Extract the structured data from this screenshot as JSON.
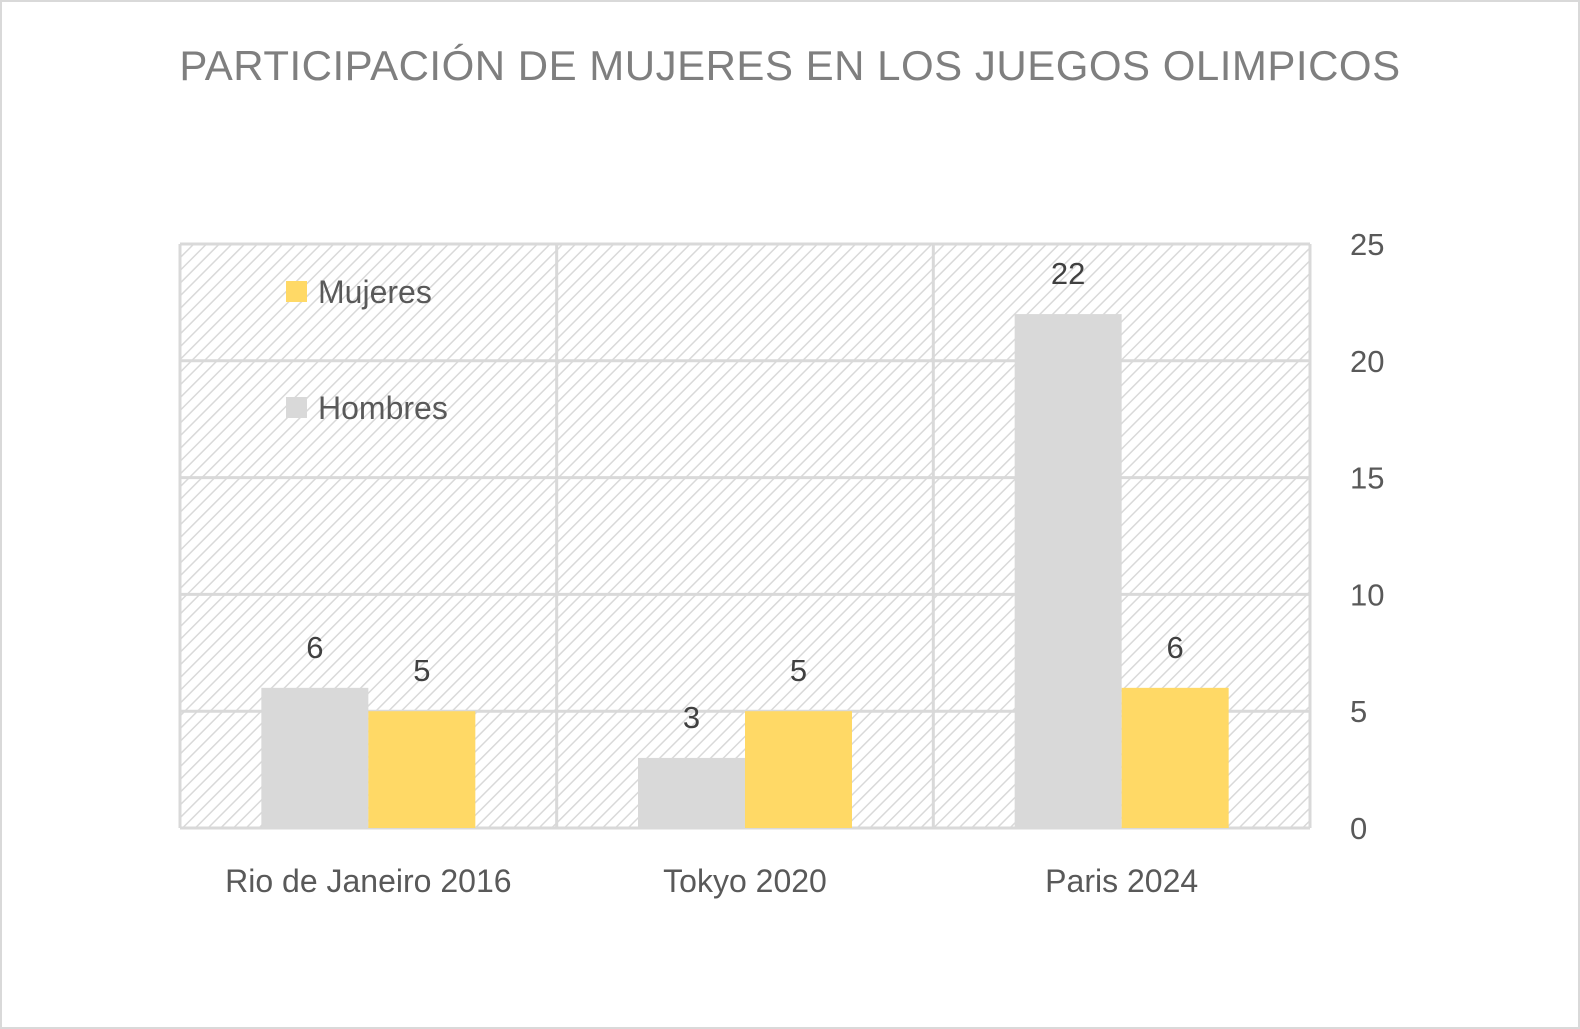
{
  "chart_data": {
    "type": "bar",
    "title": "PARTICIPACIÓN DE MUJERES EN LOS JUEGOS OLIMPICOS",
    "categories": [
      "Rio de Janeiro 2016",
      "Tokyo 2020",
      "Paris 2024"
    ],
    "series": [
      {
        "name": "Hombres",
        "values": [
          6,
          3,
          22
        ],
        "color": "#d9d9d9"
      },
      {
        "name": "Mujeres",
        "values": [
          5,
          5,
          6
        ],
        "color": "#ffd966"
      }
    ],
    "legend_order": [
      "Mujeres",
      "Hombres"
    ],
    "ylim": [
      0,
      25
    ],
    "yticks": [
      0,
      5,
      10,
      15,
      20,
      25
    ],
    "y_axis_side": "right",
    "grid": true,
    "plot_background": "diagonal-hatch",
    "legend_position": "top-left-inside",
    "data_labels": true
  }
}
